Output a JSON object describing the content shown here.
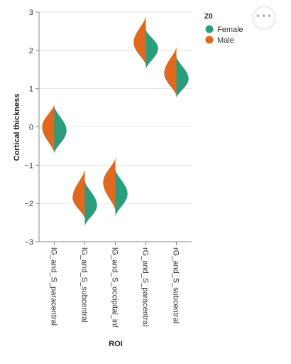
{
  "chart_data": {
    "type": "violin",
    "xlabel": "ROI",
    "ylabel": "Cortical thickness",
    "ylim": [
      -3,
      3
    ],
    "yticks": [
      "3",
      "2",
      "1",
      "0",
      "−1",
      "−2",
      "−3"
    ],
    "categories": [
      "lG_and_S_paracentral",
      "lG_and_S_subcentral",
      "lG_and_S_occipital_inf",
      "rG_and_S_paracentral",
      "rG_and_S_subcentral"
    ],
    "legend": {
      "title": "Z0",
      "position": "top-right"
    },
    "grid": true,
    "series": [
      {
        "name": "Male",
        "color": "#e0691f",
        "side": "left",
        "violins": [
          {
            "min": -0.7,
            "max": 0.6,
            "peak": 0.0
          },
          {
            "min": -2.4,
            "max": -1.1,
            "peak": -1.85
          },
          {
            "min": -2.2,
            "max": -0.8,
            "peak": -1.45
          },
          {
            "min": 1.6,
            "max": 2.9,
            "peak": 2.2
          },
          {
            "min": 0.8,
            "max": 2.1,
            "peak": 1.4
          }
        ]
      },
      {
        "name": "Female",
        "color": "#2a9d7c",
        "side": "right",
        "violins": [
          {
            "min": -0.7,
            "max": 0.55,
            "peak": -0.1
          },
          {
            "min": -2.6,
            "max": -1.4,
            "peak": -2.05
          },
          {
            "min": -2.35,
            "max": -1.1,
            "peak": -1.75
          },
          {
            "min": 1.5,
            "max": 2.55,
            "peak": 2.05
          },
          {
            "min": 0.75,
            "max": 1.85,
            "peak": 1.25
          }
        ]
      }
    ],
    "legend_order": [
      "Female",
      "Male"
    ]
  },
  "toolbar": {
    "more_icon": "ellipsis-icon",
    "more_glyph": "•••"
  }
}
